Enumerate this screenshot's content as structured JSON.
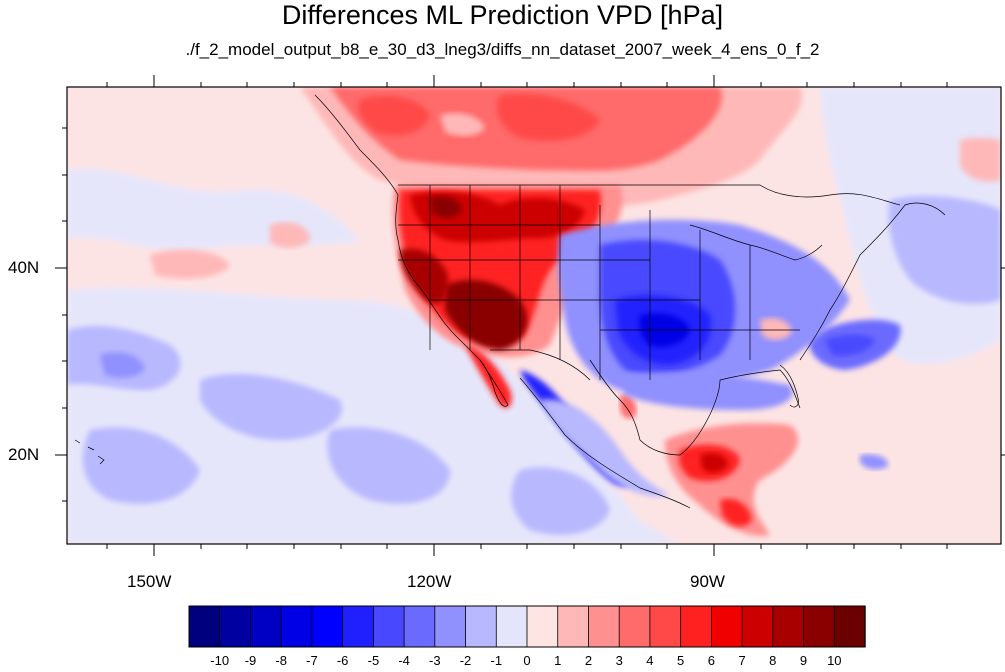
{
  "title": "Differences ML Prediction VPD [hPa]",
  "subtitle": "./f_2_model_output_b8_e_30_d3_lneg3/diffs_nn_dataset_2007_week_4_ens_0_f_2",
  "map": {
    "lon_labels": [
      "150W",
      "120W",
      "90W"
    ],
    "lat_labels": [
      "40N",
      "20N"
    ]
  },
  "colorbar": {
    "labels": [
      "-10",
      "-9",
      "-8",
      "-7",
      "-6",
      "-5",
      "-4",
      "-3",
      "-2",
      "-1",
      "0",
      "1",
      "2",
      "3",
      "4",
      "5",
      "6",
      "7",
      "8",
      "9",
      "10"
    ],
    "colors": [
      "#00007f",
      "#0000a0",
      "#0000c4",
      "#0000e6",
      "#0000ff",
      "#2020ff",
      "#4848ff",
      "#6a6aff",
      "#9090ff",
      "#b8b8ff",
      "#e4e4fa",
      "#ffe4e4",
      "#ffb8b8",
      "#ff9090",
      "#ff6a6a",
      "#ff4848",
      "#ff2020",
      "#f00000",
      "#cc0000",
      "#a80000",
      "#8a0000",
      "#6a0000"
    ]
  },
  "colors": {
    "ocean_pale_pink": "#fde4e4",
    "ocean_pale_blue": "#e6e6fb",
    "light_blue": "#b8b8ff",
    "mid_blue": "#6a6aff",
    "strong_blue": "#2020ff",
    "light_red": "#ffb8b8",
    "mid_red": "#ff6a6a",
    "strong_red": "#ff2020",
    "dark_red": "#a80000",
    "coast_line": "#000000"
  }
}
